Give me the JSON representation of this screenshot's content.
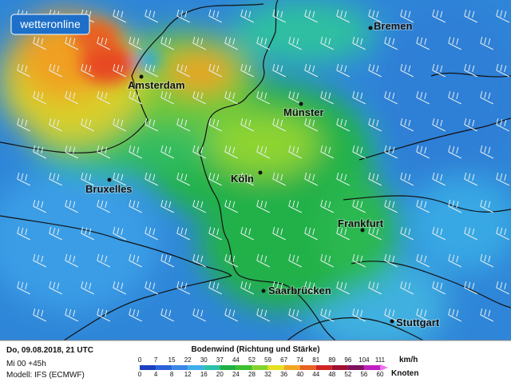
{
  "logo": "wetteronline",
  "cities": [
    {
      "label": "Bremen"
    },
    {
      "label": "Amsterdam"
    },
    {
      "label": "Münster"
    },
    {
      "label": "Köln"
    },
    {
      "label": "Bruxelles"
    },
    {
      "label": "Frankfurt"
    },
    {
      "label": "Saarbrücken"
    },
    {
      "label": "Stuttgart"
    }
  ],
  "footer": {
    "date": "Do, 09.08.2018, 21 UTC",
    "run": "Mi 00 +45h",
    "model": "Modell: IFS (ECMWF)"
  },
  "legend": {
    "title": "Bodenwind (Richtung und Stärke)",
    "kmh": {
      "unit": "km/h",
      "ticks": [
        0,
        7,
        15,
        22,
        30,
        37,
        44,
        52,
        59,
        67,
        74,
        81,
        89,
        96,
        104,
        111
      ]
    },
    "knots": {
      "unit": "Knoten",
      "ticks": [
        0,
        4,
        8,
        12,
        16,
        20,
        24,
        28,
        32,
        36,
        40,
        44,
        48,
        52,
        56,
        60
      ]
    },
    "colors": [
      "#1c3fbf",
      "#2a62d8",
      "#3a86e6",
      "#3eaee8",
      "#2cc0a8",
      "#1fb045",
      "#3cc030",
      "#86d22e",
      "#e6e020",
      "#f2a622",
      "#e86220",
      "#d02424",
      "#a01030",
      "#801060",
      "#c020c0"
    ],
    "arrow_color": "#f070f0"
  }
}
